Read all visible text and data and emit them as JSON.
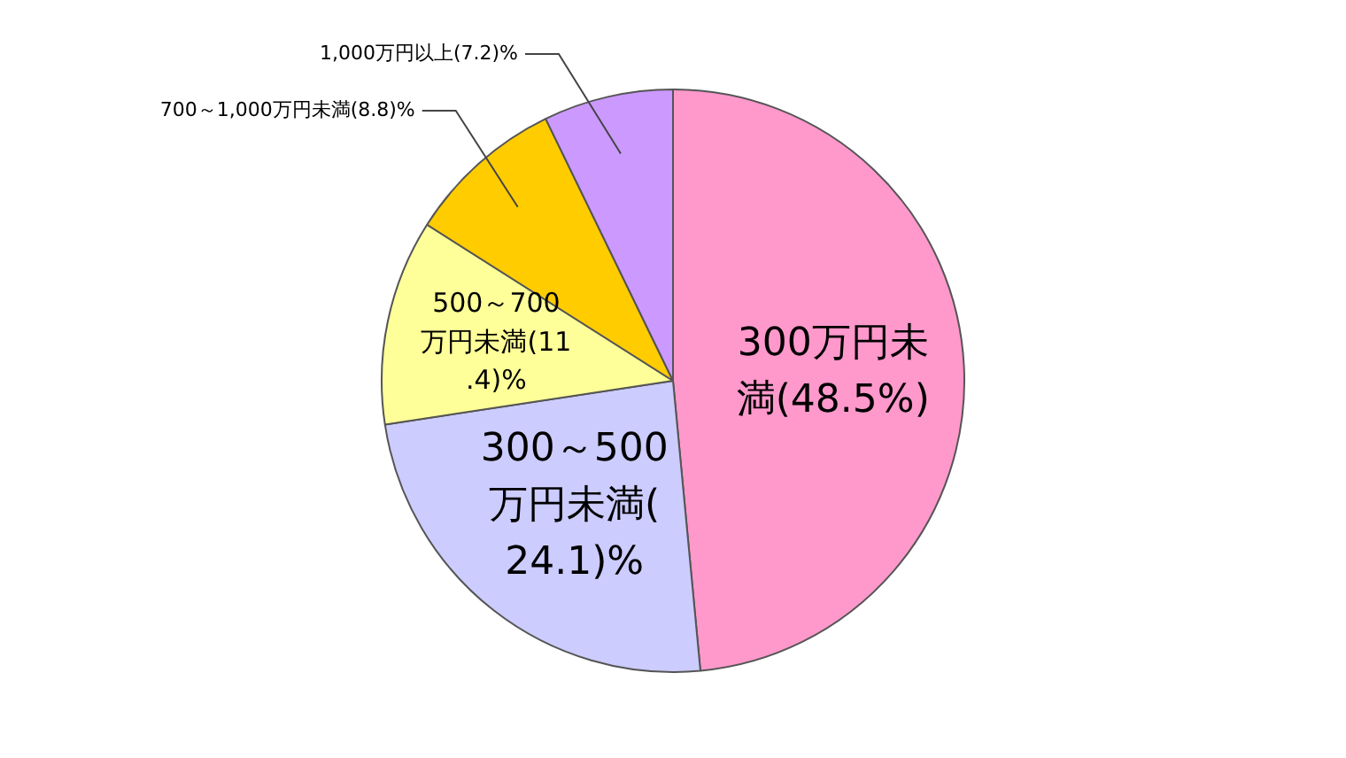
{
  "chart_data": {
    "type": "pie",
    "categories": [
      "300万円未満(48.5%)",
      "300～500万円未満(24.1)%",
      "500～700万円未満(11.4)%",
      "700～1,000万円未満(8.8)%",
      "1,000万円以上(7.2)%"
    ],
    "values": [
      48.5,
      24.1,
      11.4,
      8.8,
      7.2
    ],
    "colors": [
      "#ff99cc",
      "#ccccff",
      "#ffff99",
      "#ffcc00",
      "#cc99ff"
    ],
    "legend": false
  }
}
